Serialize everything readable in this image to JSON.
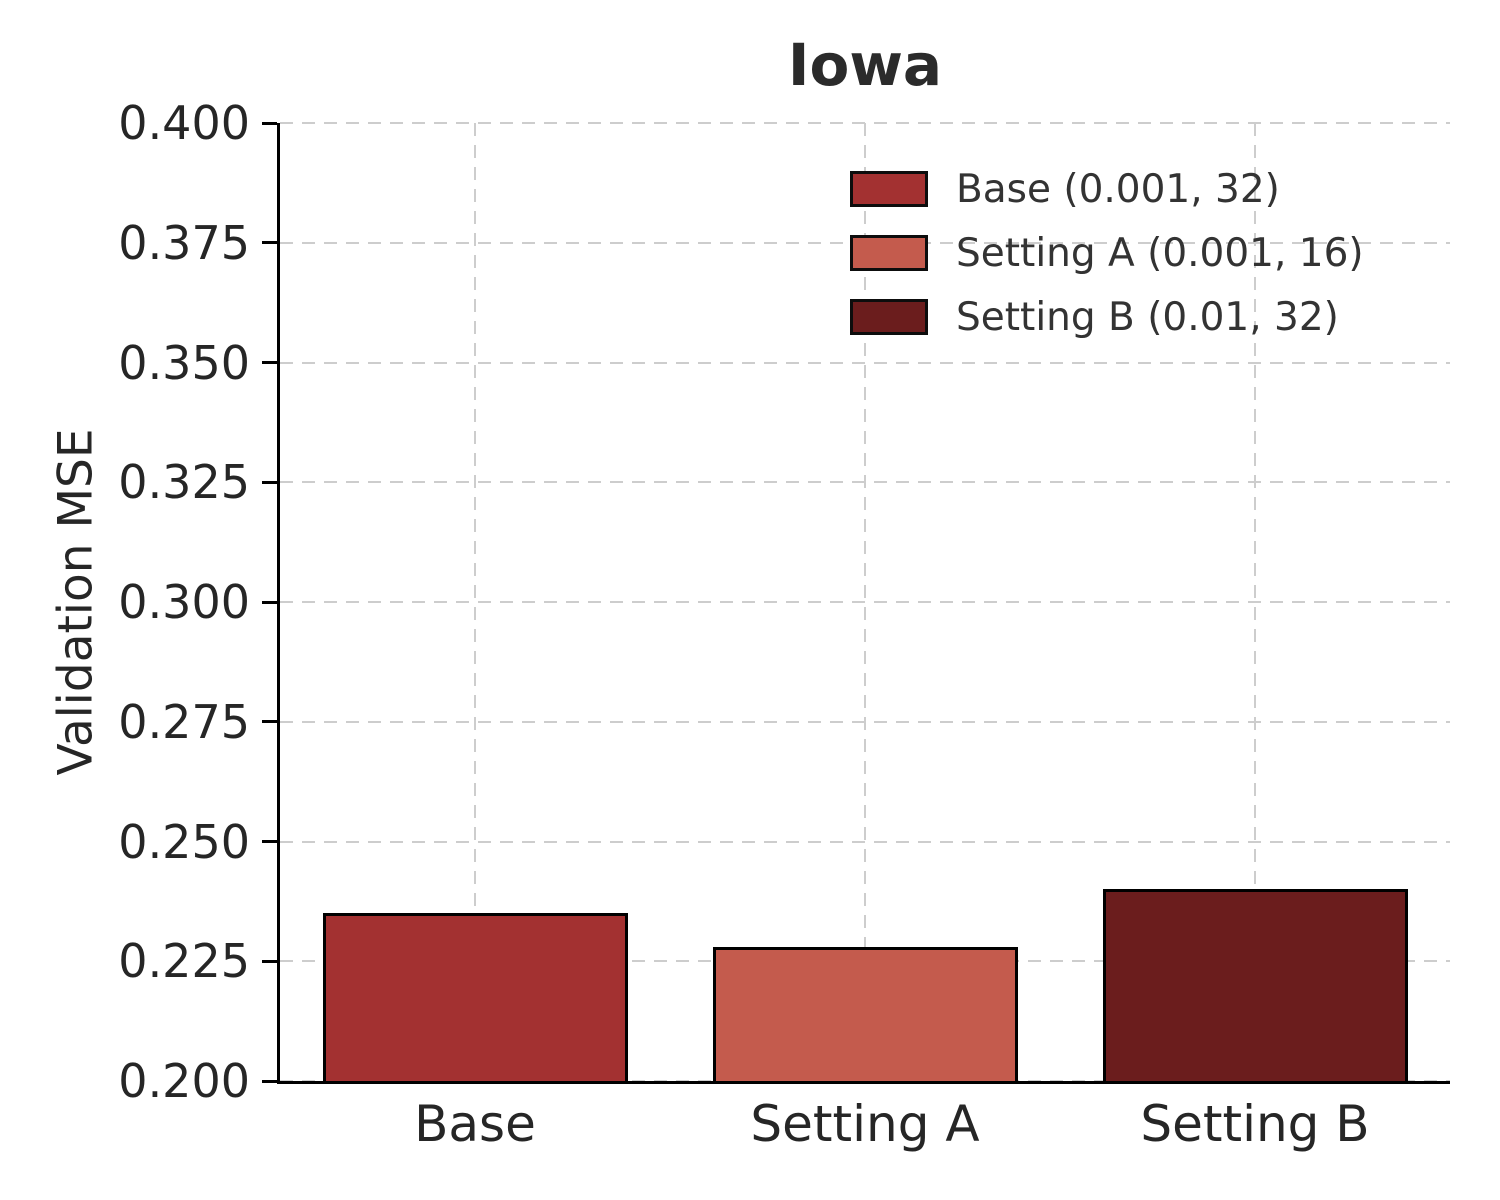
{
  "chart_data": {
    "type": "bar",
    "title": "Iowa",
    "ylabel": "Validation MSE",
    "xlabel": "",
    "categories": [
      "Base",
      "Setting A",
      "Setting B"
    ],
    "values": [
      0.235,
      0.228,
      0.24
    ],
    "bar_colors": [
      "#a33131",
      "#c45b4d",
      "#6b1d1d"
    ],
    "bar_edge_color": "#000000",
    "ylim": [
      0.2,
      0.4
    ],
    "yticks": [
      0.2,
      0.225,
      0.25,
      0.275,
      0.3,
      0.325,
      0.35,
      0.375,
      0.4
    ],
    "ytick_labels": [
      "0.200",
      "0.225",
      "0.250",
      "0.275",
      "0.300",
      "0.325",
      "0.350",
      "0.375",
      "0.400"
    ],
    "grid": "dashed",
    "grid_color": "#cdcdcd",
    "legend_position": "upper right",
    "legend": {
      "entries": [
        {
          "label": "Base (0.001, 32)",
          "color": "#a33131"
        },
        {
          "label": "Setting A (0.001, 16)",
          "color": "#c45b4d"
        },
        {
          "label": "Setting B (0.01, 32)",
          "color": "#6b1d1d"
        }
      ]
    }
  }
}
